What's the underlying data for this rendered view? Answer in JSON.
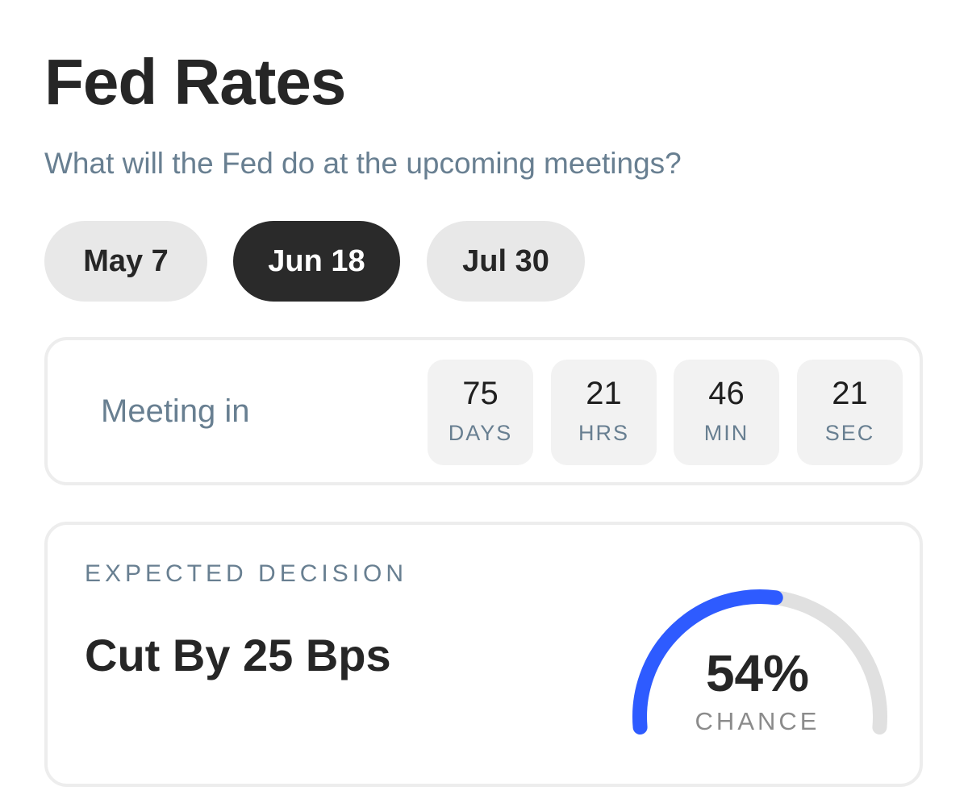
{
  "header": {
    "title": "Fed Rates",
    "subtitle": "What will the Fed do at the upcoming meetings?"
  },
  "meeting_tabs": [
    {
      "label": "May 7",
      "selected": false
    },
    {
      "label": "Jun 18",
      "selected": true
    },
    {
      "label": "Jul 30",
      "selected": false
    }
  ],
  "countdown": {
    "label": "Meeting in",
    "units": [
      {
        "value": "75",
        "unit": "DAYS"
      },
      {
        "value": "21",
        "unit": "HRS"
      },
      {
        "value": "46",
        "unit": "MIN"
      },
      {
        "value": "21",
        "unit": "SEC"
      }
    ]
  },
  "decision": {
    "label": "EXPECTED DECISION",
    "value": "Cut By 25 Bps",
    "chance_text": "54%",
    "chance_fraction": 0.54,
    "chance_caption": "CHANCE"
  },
  "colors": {
    "accent": "#2e5bff",
    "track": "#e0e0e0",
    "active_tab": "#2a2a2a",
    "inactive_tab": "#e8e8e8",
    "muted_text": "#687f91"
  }
}
